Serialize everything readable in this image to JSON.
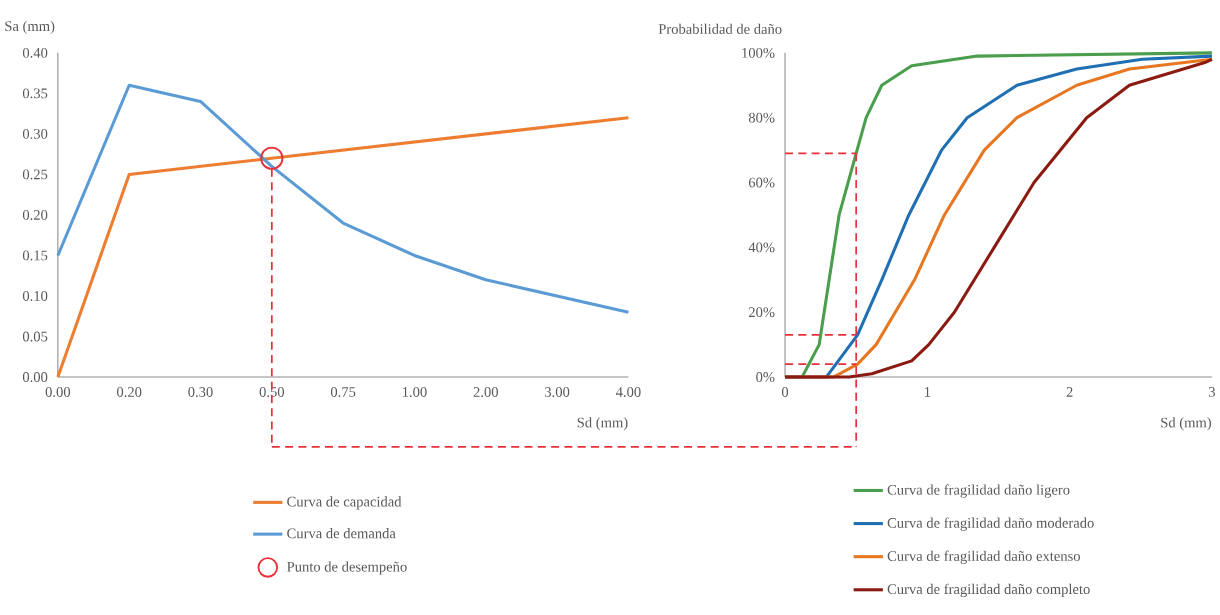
{
  "chart_data": [
    {
      "type": "line",
      "xlabel": "Sd (mm)",
      "ylabel": "Sa (mm)",
      "categories": [
        "0.00",
        "0.20",
        "0.30",
        "0.50",
        "0.75",
        "1.00",
        "2.00",
        "3.00",
        "4.00"
      ],
      "ylim": [
        0,
        0.4
      ],
      "yticks": [
        {
          "value": 0,
          "label": "0.00"
        },
        {
          "value": 0.05,
          "label": "0.05"
        },
        {
          "value": 0.1,
          "label": "0.10"
        },
        {
          "value": 0.15,
          "label": "0.15"
        },
        {
          "value": 0.2,
          "label": "0.20"
        },
        {
          "value": 0.25,
          "label": "0.25"
        },
        {
          "value": 0.3,
          "label": "0.30"
        },
        {
          "value": 0.35,
          "label": "0.35"
        },
        {
          "value": 0.4,
          "label": "0.40"
        }
      ],
      "series": [
        {
          "name": "Curva de capacidad",
          "color": "#ed7d31",
          "values": [
            0,
            0.25,
            0.26,
            0.27,
            0.28,
            0.29,
            0.3,
            0.31,
            0.32
          ]
        },
        {
          "name": "Curva de demanda",
          "color": "#5b9bd5",
          "values": [
            0.15,
            0.36,
            0.34,
            0.26,
            0.19,
            0.15,
            0.12,
            0.1,
            0.08
          ]
        },
        {
          "name": "Punto de desempeño",
          "type": "scatter",
          "marker": "circle",
          "color": "#e8303a",
          "x": [
            "0.50"
          ],
          "values": [
            0.27
          ]
        }
      ],
      "ref_lines": [
        {
          "axis": "x",
          "value": "0.50",
          "color": "#e8303a",
          "line_style": "dashed"
        }
      ],
      "legend": "bottom"
    },
    {
      "type": "line",
      "xlabel": "Sd (mm)",
      "ylabel": "Probabilidad de daño",
      "xlim": [
        0,
        3
      ],
      "xticks": [
        0,
        1,
        2,
        3
      ],
      "ylim": [
        0,
        100
      ],
      "yticks": [
        {
          "value": 0,
          "label": "0%"
        },
        {
          "value": 20,
          "label": "20%"
        },
        {
          "value": 40,
          "label": "40%"
        },
        {
          "value": 60,
          "label": "60%"
        },
        {
          "value": 80,
          "label": "80%"
        },
        {
          "value": 100,
          "label": "100%"
        }
      ],
      "series": [
        {
          "name": "Curva de fragilidad daño ligero",
          "color": "#4a9e4c",
          "x": [
            0,
            0.12,
            0.24,
            0.31,
            0.38,
            0.5,
            0.57,
            0.68,
            0.89,
            1.35,
            3
          ],
          "values": [
            0,
            0,
            10,
            30,
            50,
            69,
            80,
            90,
            96,
            99,
            100
          ]
        },
        {
          "name": "Curva de fragilidad daño moderado",
          "color": "#1f6fb2",
          "x": [
            0,
            0.29,
            0.51,
            0.68,
            0.87,
            1.1,
            1.28,
            1.63,
            2.05,
            2.51,
            3
          ],
          "values": [
            0,
            0,
            13,
            30,
            50,
            70,
            80,
            90,
            95,
            98,
            99
          ]
        },
        {
          "name": "Curva de fragilidad daño extenso",
          "color": "#e87722",
          "x": [
            0,
            0.34,
            0.51,
            0.64,
            0.91,
            1.12,
            1.4,
            1.63,
            2.05,
            2.42,
            3
          ],
          "values": [
            0,
            0,
            4,
            10,
            30,
            50,
            70,
            80,
            90,
            95,
            98
          ]
        },
        {
          "name": "Curva de fragilidad daño completo",
          "color": "#8b1a10",
          "x": [
            0,
            0.45,
            0.61,
            0.89,
            1.01,
            1.19,
            1.47,
            1.75,
            2.12,
            2.42,
            2.95,
            3
          ],
          "values": [
            0,
            0,
            1,
            5,
            10,
            20,
            40,
            60,
            80,
            90,
            97,
            98
          ]
        }
      ],
      "ref_lines": [
        {
          "axis": "x",
          "value": 0.5,
          "color": "#e8303a",
          "line_style": "dashed"
        },
        {
          "axis": "y",
          "value": 69,
          "color": "#e8303a",
          "line_style": "dashed"
        },
        {
          "axis": "y",
          "value": 13,
          "color": "#e8303a",
          "line_style": "dashed"
        },
        {
          "axis": "y",
          "value": 4,
          "color": "#e8303a",
          "line_style": "dashed"
        }
      ],
      "legend": "bottom"
    }
  ]
}
